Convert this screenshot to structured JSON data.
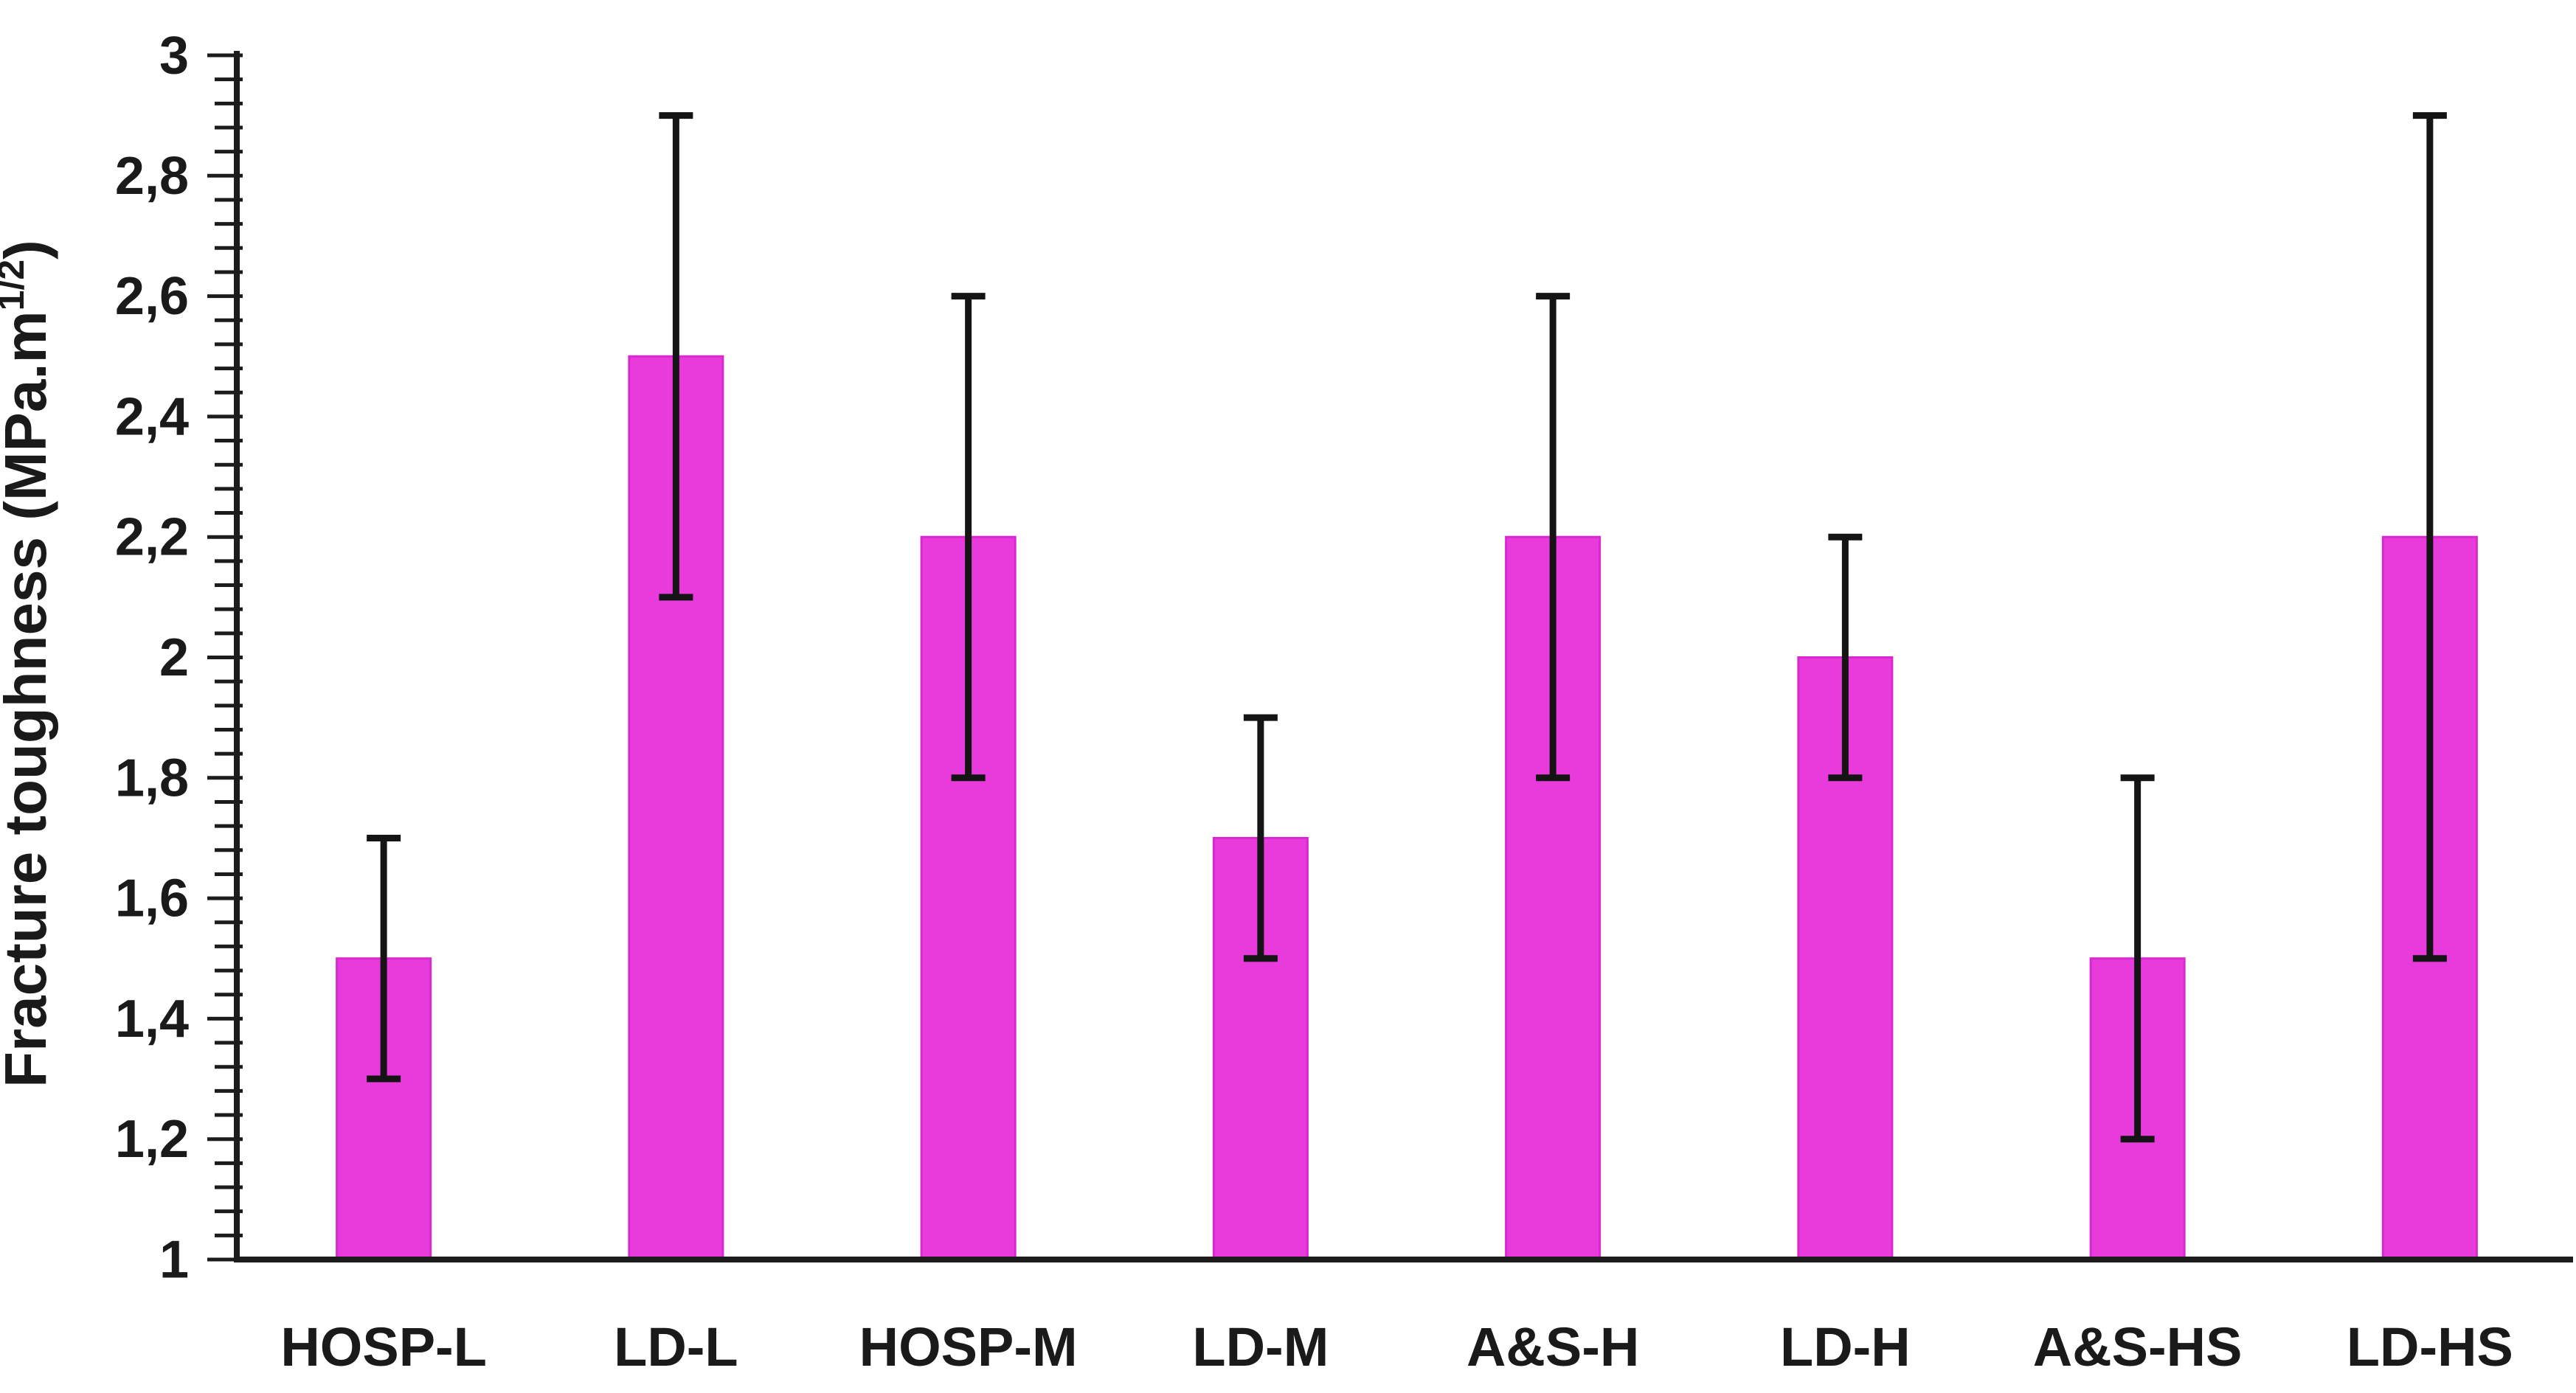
{
  "figure": {
    "background": "#FFFFFF"
  },
  "chart_data": {
    "type": "bar",
    "title": "",
    "ylabel_main": "Fracture toughness (MPa.m",
    "ylabel_sup": "1/2",
    "ylabel_close": ")",
    "categories": [
      "HOSP-L",
      "LD-L",
      "HOSP-M",
      "LD-M",
      "A&S-H",
      "LD-H",
      "A&S-HS",
      "LD-HS"
    ],
    "values": [
      1.5,
      2.5,
      2.2,
      1.7,
      2.2,
      2.0,
      1.5,
      2.2
    ],
    "error_low": [
      1.3,
      2.1,
      1.8,
      1.5,
      1.8,
      1.8,
      1.2,
      1.5
    ],
    "error_high": [
      1.7,
      2.9,
      2.6,
      1.9,
      2.6,
      2.2,
      1.8,
      2.9
    ],
    "ylim": [
      1,
      3
    ],
    "y_major_unit": 0.2,
    "y_minor_unit": 0.04,
    "y_tick_labels": [
      "3",
      "2,8",
      "2,6",
      "2,4",
      "2,2",
      "2",
      "1,8",
      "1,6",
      "1,4",
      "1,2",
      "1"
    ],
    "decimal_separator": ",",
    "grid": false,
    "legend_position": "none",
    "bar_color": "#E93BDC",
    "bar_border_color": "#D928CF",
    "error_bar_color": "#141414",
    "axis_color": "#1C1C1C",
    "text_color": "#1A1A1A"
  }
}
